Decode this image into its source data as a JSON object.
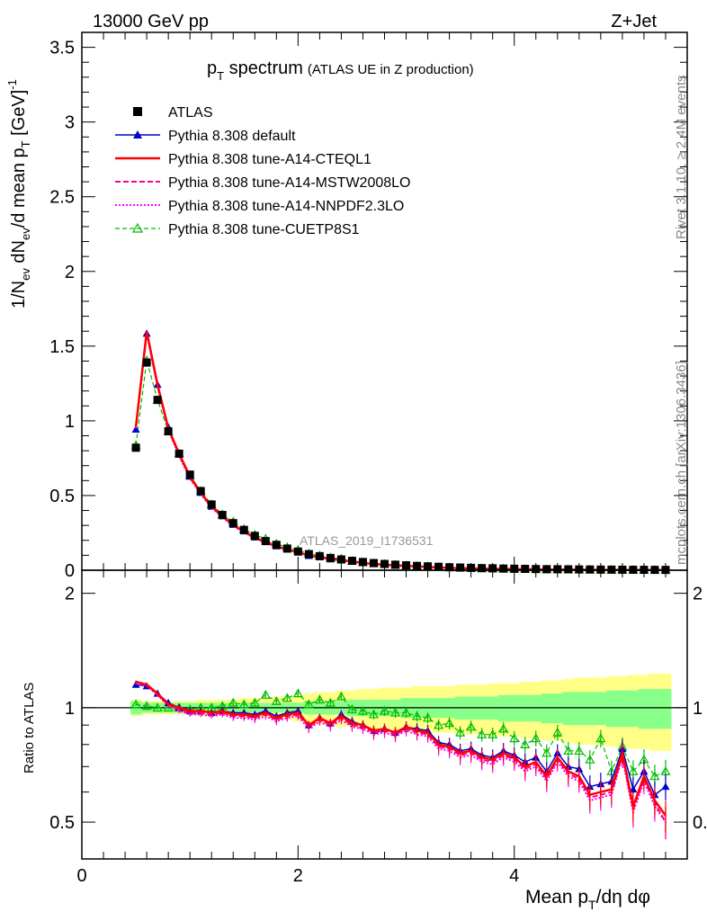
{
  "header": {
    "left": "13000 GeV pp",
    "right": "Z+Jet"
  },
  "title": {
    "main": "p",
    "sub": "T",
    "rest": " spectrum",
    "small": "(ATLAS UE in Z production)"
  },
  "watermark": "ATLAS_2019_I1736531",
  "side_text": {
    "rivet": "Rivet 3.1.10, ≥ 2.4M events",
    "mcplots": "mcplots.cern.ch [arXiv:1306.3436]"
  },
  "axis_labels": {
    "ylabel_main": "1/N_ev dN_ev/d mean p_T [GeV]^-1",
    "ylabel_ratio": "Ratio to ATLAS",
    "xlabel": "Mean p_T/dη dφ"
  },
  "colors": {
    "atlas": "#000000",
    "default": "#0000cc",
    "cteql1": "#ff0000",
    "mstw": "#ff0088",
    "nnpdf": "#ff00ff",
    "cuetp8s1": "#00bb00",
    "band_inner": "#88ff88",
    "band_outer": "#ffff88"
  },
  "chart_data": {
    "type": "line",
    "title": "p_T spectrum (ATLAS UE in Z production)",
    "xlabel": "Mean p_T/dη dφ",
    "ylabel": "1/N_ev dN_ev/d mean p_T [GeV]^-1",
    "xlim": [
      0,
      5.6
    ],
    "ylim": [
      0,
      3.6
    ],
    "ratio_ylim": [
      0.4,
      2.3
    ],
    "x_ticks": [
      "0",
      "2",
      "4"
    ],
    "y_ticks": [
      "0",
      "0.5",
      "1",
      "1.5",
      "2",
      "2.5",
      "3",
      "3.5"
    ],
    "ratio_ticks": [
      "0.5",
      "1",
      "2"
    ],
    "legend_position": "top-left",
    "x": [
      0.5,
      0.6,
      0.7,
      0.8,
      0.9,
      1.0,
      1.1,
      1.2,
      1.3,
      1.4,
      1.5,
      1.6,
      1.7,
      1.8,
      1.9,
      2.0,
      2.1,
      2.2,
      2.3,
      2.4,
      2.5,
      2.6,
      2.7,
      2.8,
      2.9,
      3.0,
      3.1,
      3.2,
      3.3,
      3.4,
      3.5,
      3.6,
      3.7,
      3.8,
      3.9,
      4.0,
      4.1,
      4.2,
      4.3,
      4.4,
      4.5,
      4.6,
      4.7,
      4.8,
      4.9,
      5.0,
      5.1,
      5.2,
      5.3,
      5.4
    ],
    "atlas_values": [
      0.82,
      1.39,
      1.14,
      0.93,
      0.78,
      0.64,
      0.53,
      0.44,
      0.37,
      0.315,
      0.27,
      0.23,
      0.195,
      0.17,
      0.145,
      0.125,
      0.108,
      0.094,
      0.082,
      0.072,
      0.063,
      0.055,
      0.048,
      0.042,
      0.037,
      0.033,
      0.029,
      0.026,
      0.023,
      0.02,
      0.018,
      0.016,
      0.014,
      0.013,
      0.011,
      0.01,
      0.009,
      0.008,
      0.007,
      0.0065,
      0.006,
      0.0053,
      0.0048,
      0.0042,
      0.0038,
      0.0034,
      0.003,
      0.0027,
      0.0024,
      0.0022
    ],
    "series": [
      {
        "name": "ATLAS",
        "ratio": [
          1,
          1,
          1,
          1,
          1,
          1,
          1,
          1,
          1,
          1,
          1,
          1,
          1,
          1,
          1,
          1,
          1,
          1,
          1,
          1,
          1,
          1,
          1,
          1,
          1,
          1,
          1,
          1,
          1,
          1,
          1,
          1,
          1,
          1,
          1,
          1,
          1,
          1,
          1,
          1,
          1,
          1,
          1,
          1,
          1,
          1,
          1,
          1,
          1,
          1
        ]
      },
      {
        "name": "Pythia 8.308 default",
        "ratio": [
          1.15,
          1.14,
          1.09,
          1.03,
          1.0,
          0.98,
          0.98,
          0.97,
          0.98,
          0.97,
          0.97,
          0.96,
          0.98,
          0.95,
          0.97,
          0.98,
          0.9,
          0.94,
          0.91,
          0.96,
          0.92,
          0.9,
          0.87,
          0.88,
          0.86,
          0.89,
          0.88,
          0.87,
          0.81,
          0.8,
          0.77,
          0.78,
          0.75,
          0.74,
          0.77,
          0.75,
          0.72,
          0.74,
          0.68,
          0.76,
          0.7,
          0.69,
          0.62,
          0.63,
          0.64,
          0.78,
          0.61,
          0.68,
          0.59,
          0.62
        ]
      },
      {
        "name": "Pythia 8.308 tune-A14-CTEQL1",
        "ratio": [
          1.17,
          1.15,
          1.09,
          1.02,
          1.0,
          0.98,
          0.98,
          0.97,
          0.98,
          0.96,
          0.96,
          0.95,
          0.97,
          0.94,
          0.96,
          0.97,
          0.9,
          0.94,
          0.91,
          0.95,
          0.91,
          0.9,
          0.87,
          0.88,
          0.86,
          0.89,
          0.87,
          0.86,
          0.8,
          0.79,
          0.76,
          0.77,
          0.74,
          0.73,
          0.76,
          0.74,
          0.7,
          0.72,
          0.66,
          0.74,
          0.68,
          0.66,
          0.59,
          0.6,
          0.61,
          0.76,
          0.55,
          0.66,
          0.57,
          0.52
        ]
      },
      {
        "name": "Pythia 8.308 tune-A14-MSTW2008LO",
        "ratio": [
          1.17,
          1.15,
          1.08,
          1.02,
          0.99,
          0.97,
          0.97,
          0.96,
          0.97,
          0.95,
          0.95,
          0.94,
          0.96,
          0.93,
          0.95,
          0.96,
          0.89,
          0.93,
          0.9,
          0.94,
          0.9,
          0.89,
          0.86,
          0.87,
          0.85,
          0.88,
          0.86,
          0.85,
          0.79,
          0.78,
          0.75,
          0.76,
          0.73,
          0.72,
          0.75,
          0.73,
          0.69,
          0.71,
          0.65,
          0.73,
          0.67,
          0.65,
          0.58,
          0.59,
          0.6,
          0.75,
          0.54,
          0.65,
          0.56,
          0.5
        ]
      },
      {
        "name": "Pythia 8.308 tune-A14-NNPDF2.3LO",
        "ratio": [
          1.16,
          1.14,
          1.08,
          1.01,
          0.98,
          0.96,
          0.96,
          0.95,
          0.96,
          0.94,
          0.94,
          0.93,
          0.95,
          0.92,
          0.94,
          0.95,
          0.88,
          0.92,
          0.89,
          0.93,
          0.89,
          0.88,
          0.85,
          0.86,
          0.84,
          0.87,
          0.85,
          0.84,
          0.78,
          0.77,
          0.74,
          0.75,
          0.72,
          0.71,
          0.74,
          0.72,
          0.68,
          0.7,
          0.64,
          0.72,
          0.66,
          0.64,
          0.57,
          0.58,
          0.59,
          0.74,
          0.53,
          0.64,
          0.55,
          0.5
        ]
      },
      {
        "name": "Pythia 8.308 tune-CUETP8S1",
        "ratio": [
          1.02,
          1.01,
          1.0,
          1.0,
          1.0,
          0.99,
          1.0,
          1.0,
          1.01,
          1.03,
          1.02,
          1.03,
          1.08,
          1.04,
          1.06,
          1.09,
          1.02,
          1.05,
          1.03,
          1.07,
          0.99,
          0.98,
          0.96,
          0.98,
          0.97,
          0.97,
          0.95,
          0.94,
          0.9,
          0.91,
          0.86,
          0.89,
          0.85,
          0.85,
          0.88,
          0.83,
          0.8,
          0.83,
          0.76,
          0.86,
          0.77,
          0.77,
          0.73,
          0.83,
          0.68,
          0.79,
          0.68,
          0.73,
          0.66,
          0.68
        ]
      }
    ],
    "band_inner": [
      0.04,
      0.03,
      0.03,
      0.03,
      0.03,
      0.03,
      0.03,
      0.03,
      0.03,
      0.03,
      0.03,
      0.03,
      0.03,
      0.03,
      0.03,
      0.03,
      0.04,
      0.04,
      0.04,
      0.04,
      0.05,
      0.05,
      0.05,
      0.05,
      0.05,
      0.06,
      0.06,
      0.06,
      0.06,
      0.06,
      0.07,
      0.07,
      0.07,
      0.07,
      0.08,
      0.08,
      0.08,
      0.08,
      0.09,
      0.09,
      0.1,
      0.1,
      0.1,
      0.1,
      0.11,
      0.11,
      0.11,
      0.12,
      0.12,
      0.12
    ],
    "band_outer": [
      0.05,
      0.04,
      0.04,
      0.04,
      0.04,
      0.04,
      0.05,
      0.05,
      0.05,
      0.05,
      0.06,
      0.06,
      0.06,
      0.07,
      0.07,
      0.08,
      0.09,
      0.1,
      0.1,
      0.11,
      0.11,
      0.12,
      0.12,
      0.13,
      0.13,
      0.13,
      0.14,
      0.14,
      0.14,
      0.14,
      0.15,
      0.15,
      0.15,
      0.16,
      0.16,
      0.16,
      0.17,
      0.17,
      0.18,
      0.18,
      0.19,
      0.2,
      0.2,
      0.2,
      0.21,
      0.21,
      0.22,
      0.22,
      0.23,
      0.23
    ]
  }
}
